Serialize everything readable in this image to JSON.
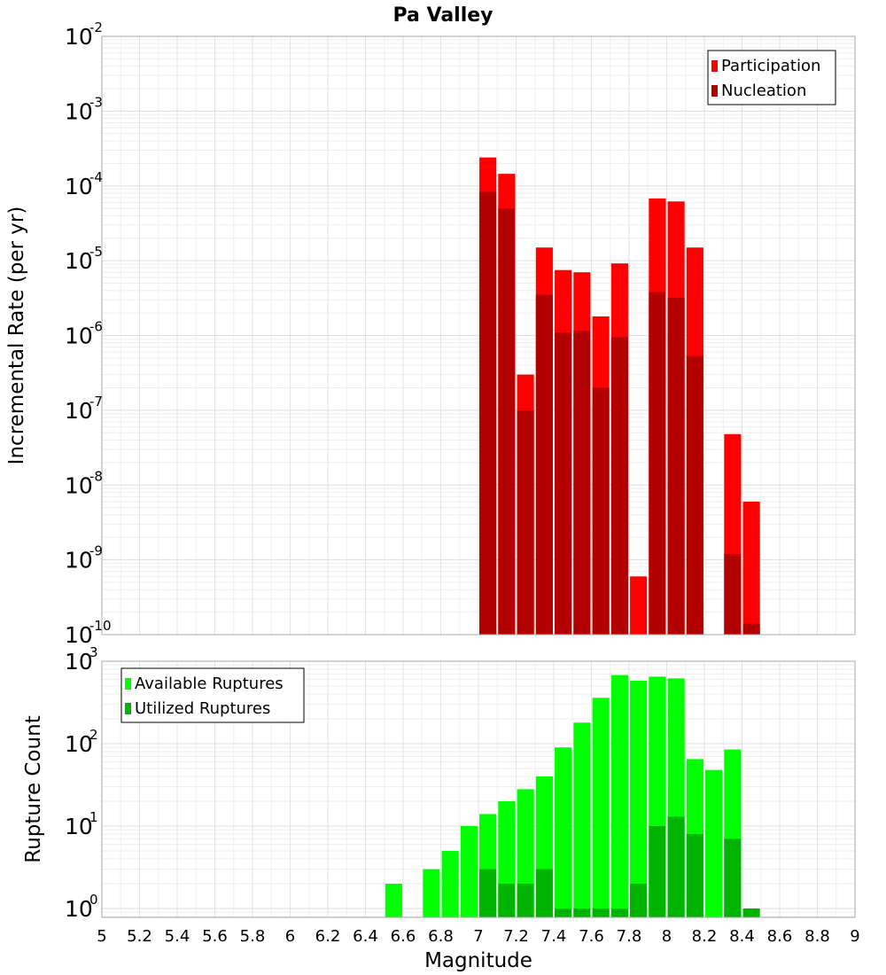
{
  "title": "Pa Valley",
  "chart_data": [
    {
      "type": "bar",
      "panel": "top",
      "ylabel": "Incremental Rate (per yr)",
      "yscale": "log",
      "ylim": [
        1e-10,
        0.01
      ],
      "y_ticks": [
        {
          "base": "10",
          "exp": "-10",
          "value": 1e-10
        },
        {
          "base": "10",
          "exp": "-9",
          "value": 1e-09
        },
        {
          "base": "10",
          "exp": "-8",
          "value": 1e-08
        },
        {
          "base": "10",
          "exp": "-7",
          "value": 1e-07
        },
        {
          "base": "10",
          "exp": "-6",
          "value": 1e-06
        },
        {
          "base": "10",
          "exp": "-5",
          "value": 1e-05
        },
        {
          "base": "10",
          "exp": "-4",
          "value": 0.0001
        },
        {
          "base": "10",
          "exp": "-3",
          "value": 0.001
        },
        {
          "base": "10",
          "exp": "-2",
          "value": 0.01
        }
      ],
      "legend_position": "top-right",
      "series": [
        {
          "name": "Participation",
          "color": "#ff0000",
          "points": [
            [
              7.05,
              0.00024
            ],
            [
              7.15,
              0.000145
            ],
            [
              7.25,
              3e-07
            ],
            [
              7.35,
              1.5e-05
            ],
            [
              7.45,
              7.5e-06
            ],
            [
              7.55,
              7e-06
            ],
            [
              7.65,
              1.8e-06
            ],
            [
              7.75,
              9.2e-06
            ],
            [
              7.85,
              6e-10
            ],
            [
              7.95,
              6.8e-05
            ],
            [
              8.05,
              6.2e-05
            ],
            [
              8.15,
              1.5e-05
            ],
            [
              8.35,
              4.8e-08
            ],
            [
              8.45,
              6e-09
            ]
          ]
        },
        {
          "name": "Nucleation",
          "color": "#b30000",
          "points": [
            [
              7.05,
              8.3e-05
            ],
            [
              7.15,
              5e-05
            ],
            [
              7.25,
              1e-07
            ],
            [
              7.35,
              3.5e-06
            ],
            [
              7.45,
              1.1e-06
            ],
            [
              7.55,
              1.15e-06
            ],
            [
              7.65,
              2e-07
            ],
            [
              7.75,
              9.5e-07
            ],
            [
              7.95,
              3.8e-06
            ],
            [
              8.05,
              3.2e-06
            ],
            [
              8.15,
              5.3e-07
            ],
            [
              8.35,
              1.2e-09
            ],
            [
              8.45,
              1.4e-10
            ]
          ]
        }
      ]
    },
    {
      "type": "bar",
      "panel": "bottom",
      "xlabel": "Magnitude",
      "ylabel": "Rupture Count",
      "xlim": [
        5,
        9
      ],
      "x_ticks": [
        "5",
        "5.2",
        "5.4",
        "5.6",
        "5.8",
        "6",
        "6.2",
        "6.4",
        "6.6",
        "6.8",
        "7",
        "7.2",
        "7.4",
        "7.6",
        "7.8",
        "8",
        "8.2",
        "8.4",
        "8.6",
        "8.8",
        "9"
      ],
      "yscale": "log",
      "ylim": [
        0.78,
        1000
      ],
      "y_ticks": [
        {
          "base": "10",
          "exp": "0",
          "value": 1
        },
        {
          "base": "10",
          "exp": "1",
          "value": 10
        },
        {
          "base": "10",
          "exp": "2",
          "value": 100
        },
        {
          "base": "10",
          "exp": "3",
          "value": 1000
        }
      ],
      "legend_position": "top-left",
      "series": [
        {
          "name": "Available Ruptures",
          "color": "#00ff00",
          "points": [
            [
              6.55,
              2
            ],
            [
              6.75,
              3
            ],
            [
              6.85,
              5
            ],
            [
              6.95,
              10
            ],
            [
              7.05,
              14
            ],
            [
              7.15,
              20
            ],
            [
              7.25,
              28
            ],
            [
              7.35,
              40
            ],
            [
              7.45,
              90
            ],
            [
              7.55,
              180
            ],
            [
              7.65,
              360
            ],
            [
              7.75,
              680
            ],
            [
              7.85,
              580
            ],
            [
              7.95,
              650
            ],
            [
              8.05,
              620
            ],
            [
              8.15,
              65
            ],
            [
              8.25,
              48
            ],
            [
              8.35,
              85
            ]
          ]
        },
        {
          "name": "Utilized Ruptures",
          "color": "#00b300",
          "points": [
            [
              7.05,
              3
            ],
            [
              7.15,
              2
            ],
            [
              7.25,
              2
            ],
            [
              7.35,
              3
            ],
            [
              7.45,
              1
            ],
            [
              7.55,
              1
            ],
            [
              7.65,
              1
            ],
            [
              7.75,
              1
            ],
            [
              7.85,
              2
            ],
            [
              7.95,
              10
            ],
            [
              8.05,
              13
            ],
            [
              8.15,
              8
            ],
            [
              8.35,
              7
            ],
            [
              8.45,
              1
            ]
          ]
        }
      ]
    }
  ]
}
